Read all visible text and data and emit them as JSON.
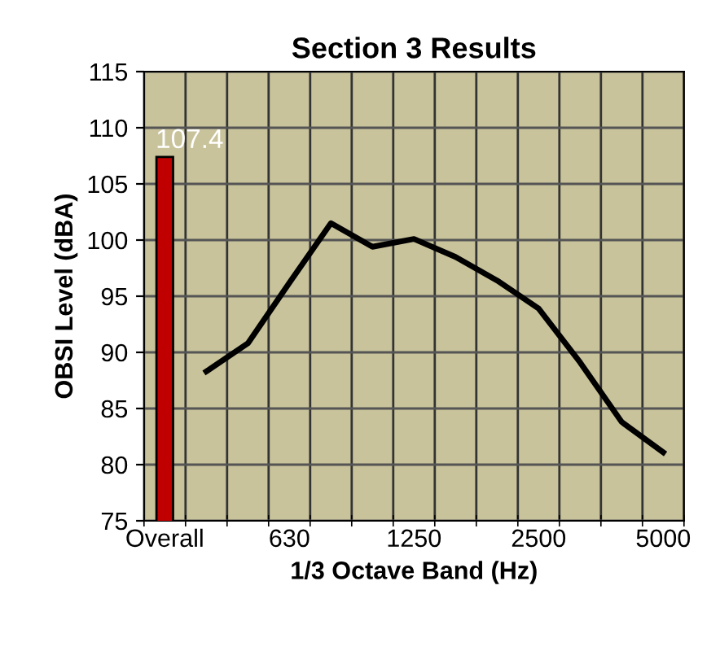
{
  "chart_data": {
    "type": "bar",
    "title": "Section 3 Results",
    "xlabel": "1/3 Octave Band (Hz)",
    "ylabel": "OBSI Level (dBA)",
    "categories": [
      "Overall",
      null,
      null,
      "630",
      null,
      null,
      "1250",
      null,
      null,
      "2500",
      null,
      null,
      "5000"
    ],
    "series": [
      {
        "color": "#c00000",
        "values": [
          107.4,
          null,
          null,
          null,
          null,
          null,
          null,
          null,
          null,
          null,
          null,
          null,
          null
        ],
        "value_labels": [
          "107.4",
          null,
          null,
          null,
          null,
          null,
          null,
          null,
          null,
          null,
          null,
          null,
          null
        ]
      },
      {
        "type": "line",
        "color": "#000000",
        "values": [
          null,
          88.3,
          90.8,
          96.2,
          101.5,
          99.4,
          100.1,
          98.5,
          96.4,
          93.9,
          89.1,
          83.8,
          81.1
        ]
      }
    ],
    "ylim": [
      75,
      115
    ],
    "yticks": [
      75,
      80,
      85,
      90,
      95,
      100,
      105,
      110,
      115
    ],
    "grid": true,
    "marker": "none",
    "line_style": "solid"
  }
}
